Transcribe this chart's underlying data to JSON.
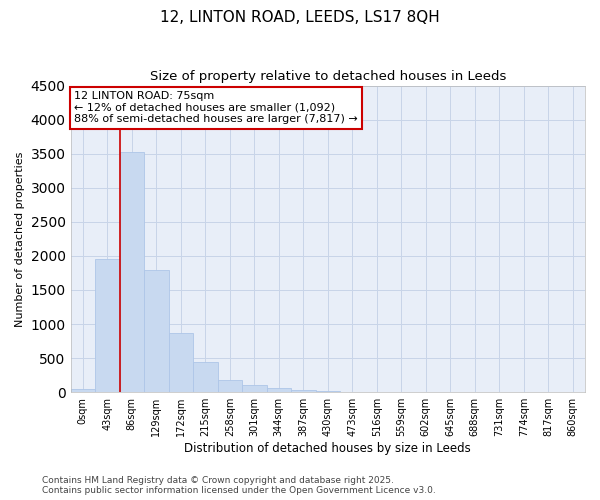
{
  "title1": "12, LINTON ROAD, LEEDS, LS17 8QH",
  "title2": "Size of property relative to detached houses in Leeds",
  "xlabel": "Distribution of detached houses by size in Leeds",
  "ylabel": "Number of detached properties",
  "bar_color": "#c8d9f0",
  "bar_edge_color": "#aec6e8",
  "annotation_line_color": "#cc0000",
  "annotation_box_color": "#cc0000",
  "background_color": "#ffffff",
  "plot_bg_color": "#e8eef8",
  "grid_color": "#c8d4e8",
  "categories": [
    "0sqm",
    "43sqm",
    "86sqm",
    "129sqm",
    "172sqm",
    "215sqm",
    "258sqm",
    "301sqm",
    "344sqm",
    "387sqm",
    "430sqm",
    "473sqm",
    "516sqm",
    "559sqm",
    "602sqm",
    "645sqm",
    "688sqm",
    "731sqm",
    "774sqm",
    "817sqm",
    "860sqm"
  ],
  "values": [
    50,
    1950,
    3520,
    1800,
    870,
    450,
    175,
    100,
    55,
    30,
    15,
    8,
    5,
    3,
    2,
    1,
    1,
    1,
    0,
    0,
    0
  ],
  "ylim": [
    0,
    4500
  ],
  "yticks": [
    0,
    500,
    1000,
    1500,
    2000,
    2500,
    3000,
    3500,
    4000,
    4500
  ],
  "red_line_x": 1.5,
  "annotation_text_line1": "12 LINTON ROAD: 75sqm",
  "annotation_text_line2": "← 12% of detached houses are smaller (1,092)",
  "annotation_text_line3": "88% of semi-detached houses are larger (7,817) →",
  "footer_line1": "Contains HM Land Registry data © Crown copyright and database right 2025.",
  "footer_line2": "Contains public sector information licensed under the Open Government Licence v3.0.",
  "title_fontsize": 11,
  "subtitle_fontsize": 9.5,
  "tick_fontsize": 7,
  "ylabel_fontsize": 8,
  "xlabel_fontsize": 8.5,
  "annotation_fontsize": 8,
  "footer_fontsize": 6.5
}
